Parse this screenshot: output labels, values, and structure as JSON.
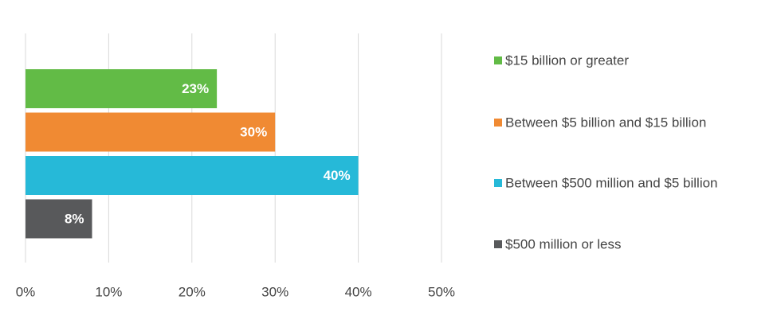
{
  "chart_data": {
    "type": "bar",
    "orientation": "horizontal",
    "series": [
      {
        "name": "$15 billion or greater",
        "color": "#62bb46",
        "values": [
          23
        ],
        "value_labels": [
          "23%"
        ]
      },
      {
        "name": "Between $5 billion and $15 billion",
        "color": "#f08a33",
        "values": [
          30
        ],
        "value_labels": [
          "30%"
        ]
      },
      {
        "name": "Between $500 million and $5 billion",
        "color": "#26b9d8",
        "values": [
          40
        ],
        "value_labels": [
          "40%"
        ]
      },
      {
        "name": "$500 million or less",
        "color": "#58595b",
        "values": [
          8
        ],
        "value_labels": [
          "8%"
        ]
      }
    ],
    "xlim": [
      0,
      50
    ],
    "xticks": [
      {
        "value": 0,
        "label": "0%"
      },
      {
        "value": 10,
        "label": "10%"
      },
      {
        "value": 20,
        "label": "20%"
      },
      {
        "value": 30,
        "label": "30%"
      },
      {
        "value": 40,
        "label": "40%"
      },
      {
        "value": 50,
        "label": "50%"
      }
    ],
    "grid": true,
    "legend": "right"
  }
}
